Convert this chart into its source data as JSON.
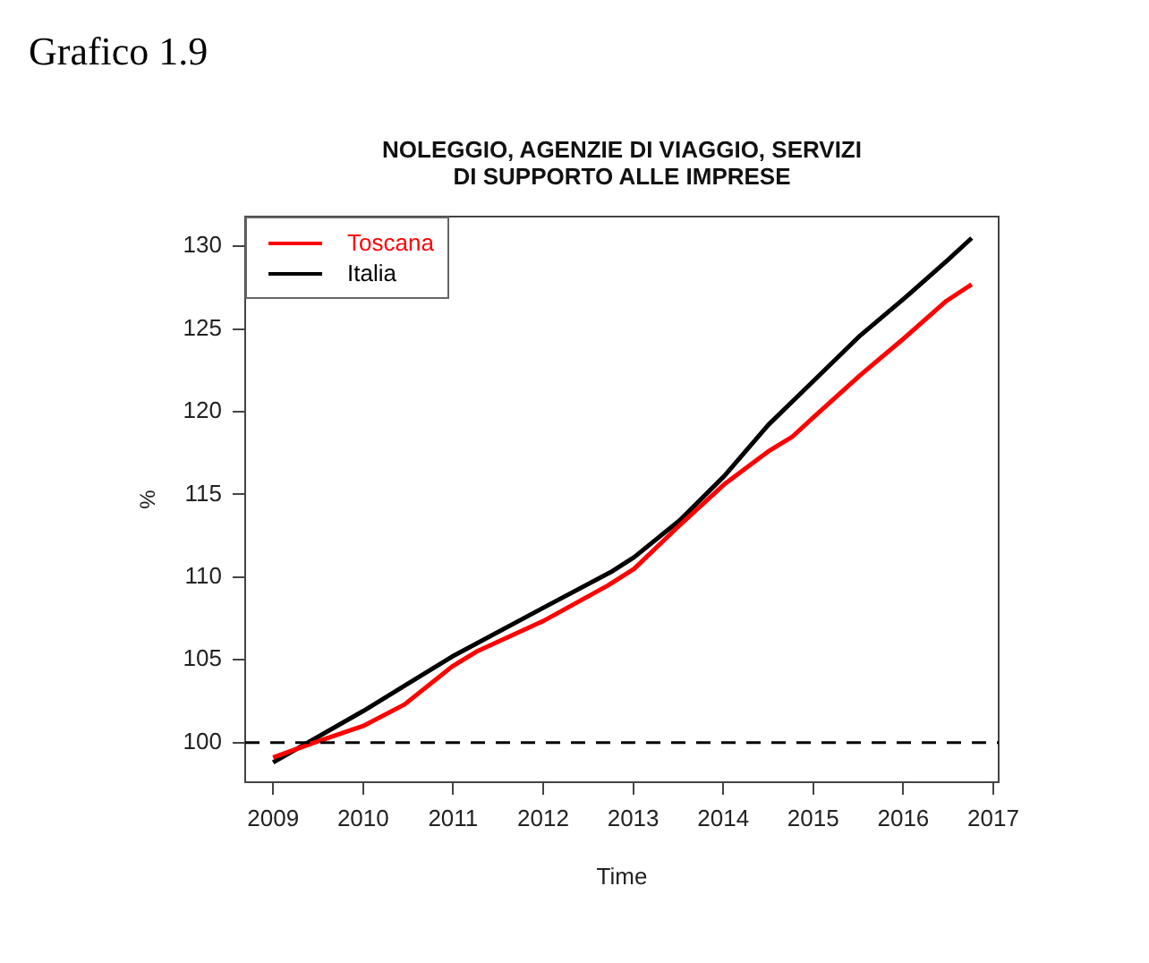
{
  "chart_data": {
    "type": "line",
    "title": "NOLEGGIO, AGENZIE DI VIAGGIO, SERVIZI\nDI SUPPORTO ALLE IMPRESE",
    "xlabel": "Time",
    "ylabel": "%",
    "annotations": [
      "Grafico 1.9"
    ],
    "xlim": [
      2008.69,
      2017.06
    ],
    "xticks": [
      2009,
      2010,
      2011,
      2012,
      2013,
      2014,
      2015,
      2016,
      2017
    ],
    "ylim": [
      97.6,
      131.8
    ],
    "yticks": [
      100,
      105,
      110,
      115,
      120,
      125,
      130
    ],
    "legend": "top left",
    "grid": false,
    "marker": "none",
    "line_style": "solid",
    "ref_lines": [
      {
        "axis": "y",
        "value": 100,
        "label": null,
        "color": "#000000",
        "line_style": "dashed"
      }
    ],
    "series": [
      {
        "name": "Toscana",
        "color": "#ff0000",
        "x": [
          2009,
          2009.46,
          2010,
          2010.46,
          2010.99,
          2011.26,
          2012.02,
          2012.72,
          2013.01,
          2013.51,
          2014.01,
          2014.5,
          2014.77,
          2015.01,
          2015.52,
          2016.0,
          2016.48,
          2016.76
        ],
        "values": [
          99.1,
          100,
          101.0,
          102.3,
          104.6,
          105.5,
          107.4,
          109.5,
          110.5,
          113.1,
          115.6,
          117.6,
          118.5,
          119.7,
          122.2,
          124.4,
          126.7,
          127.7
        ]
      },
      {
        "name": "Italia",
        "color": "#000000",
        "x": [
          2009,
          2010,
          2010.99,
          2012.02,
          2012.75,
          2013.01,
          2013.51,
          2014.01,
          2014.5,
          2015.01,
          2015.52,
          2016.0,
          2016.48,
          2016.76
        ],
        "values": [
          98.8,
          101.9,
          105.2,
          108.2,
          110.3,
          111.2,
          113.4,
          116.1,
          119.2,
          121.9,
          124.6,
          126.8,
          129.1,
          130.5
        ]
      }
    ]
  }
}
